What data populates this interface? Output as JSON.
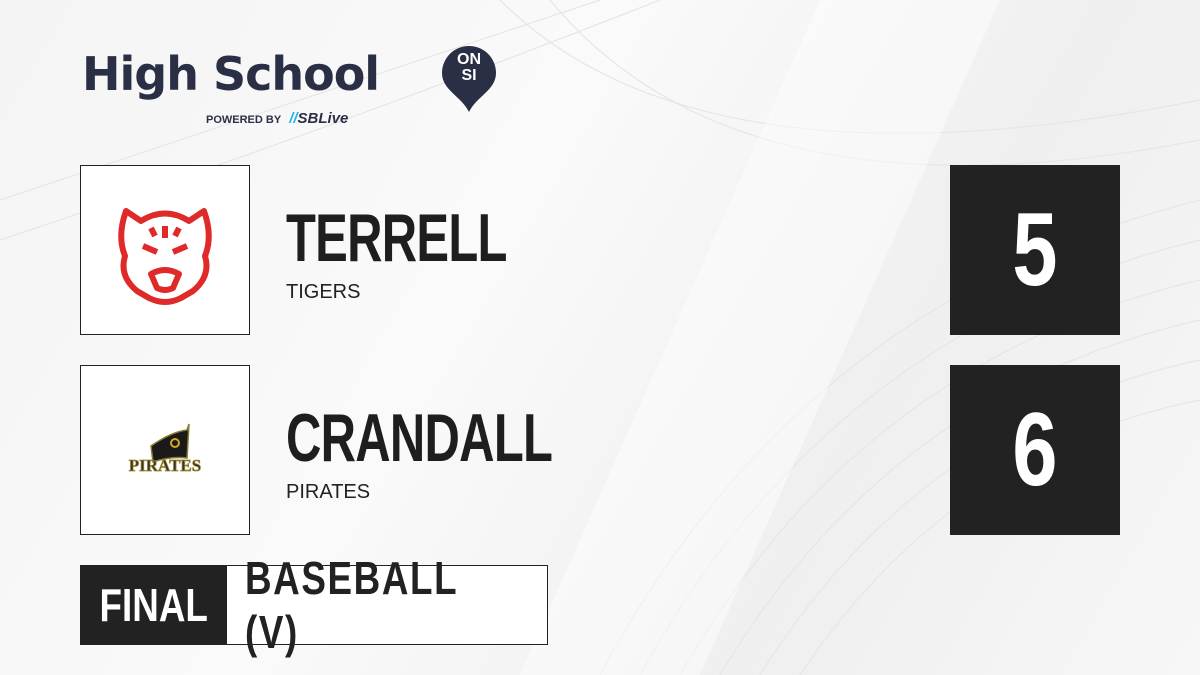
{
  "brand": {
    "title": "High School",
    "badge_top": "ON",
    "badge_bottom": "SI",
    "powered_by": "POWERED BY",
    "partner": "SBLive",
    "color": "#2b2f45",
    "partner_accent": "#1fb4e8"
  },
  "teams": [
    {
      "name": "TERRELL",
      "mascot": "TIGERS",
      "score": "5",
      "logo_icon": "tiger-head-icon",
      "logo_color": "#e02a2a"
    },
    {
      "name": "CRANDALL",
      "mascot": "PIRATES",
      "score": "6",
      "logo_icon": "pirates-flag-icon",
      "logo_color": "#c9a020",
      "logo_text": "PIRATES"
    }
  ],
  "game": {
    "status": "FINAL",
    "sport": "BASEBALL (V)"
  }
}
